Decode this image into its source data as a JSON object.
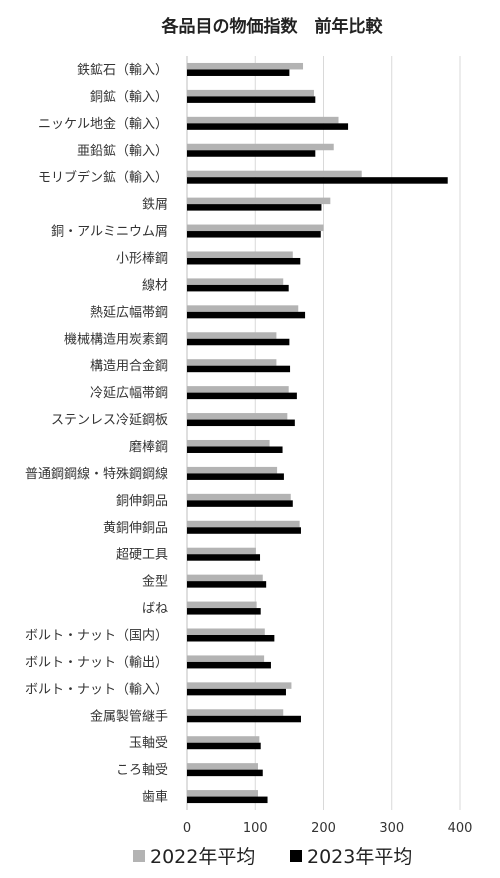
{
  "chart_data": {
    "type": "bar",
    "orientation": "horizontal",
    "title": "各品目の物価指数　前年比較",
    "categories": [
      "鉄鉱石（輸入）",
      "銅鉱（輸入）",
      "ニッケル地金（輸入）",
      "亜鉛鉱（輸入）",
      "モリブデン鉱（輸入）",
      "鉄屑",
      "銅・アルミニウム屑",
      "小形棒鋼",
      "線材",
      "熱延広幅帯鋼",
      "機械構造用炭素鋼",
      "構造用合金鋼",
      "冷延広幅帯鋼",
      "ステンレス冷延鋼板",
      "磨棒鋼",
      "普通鋼鋼線・特殊鋼鋼線",
      "銅伸銅品",
      "黄銅伸銅品",
      "超硬工具",
      "金型",
      "ばね",
      "ボルト・ナット（国内）",
      "ボルト・ナット（輸出）",
      "ボルト・ナット（輸入）",
      "金属製管継手",
      "玉軸受",
      "ころ軸受",
      "歯車"
    ],
    "series": [
      {
        "name": "2022年平均",
        "color": "#b3b3b3",
        "values": [
          170,
          186,
          222,
          215,
          256,
          210,
          200,
          155,
          141,
          163,
          131,
          131,
          149,
          147,
          121,
          132,
          152,
          165,
          101,
          111,
          102,
          114,
          113,
          153,
          141,
          106,
          104,
          104
        ]
      },
      {
        "name": "2023年平均",
        "color": "#000000",
        "values": [
          150,
          188,
          236,
          188,
          382,
          197,
          196,
          166,
          149,
          173,
          150,
          151,
          161,
          158,
          140,
          142,
          155,
          167,
          107,
          116,
          108,
          128,
          123,
          145,
          167,
          108,
          111,
          118
        ]
      }
    ],
    "xlim": [
      0,
      400
    ],
    "xticks": [
      "0",
      "100",
      "200",
      "300",
      "400"
    ],
    "grid": true,
    "legend_position": "bottom"
  }
}
